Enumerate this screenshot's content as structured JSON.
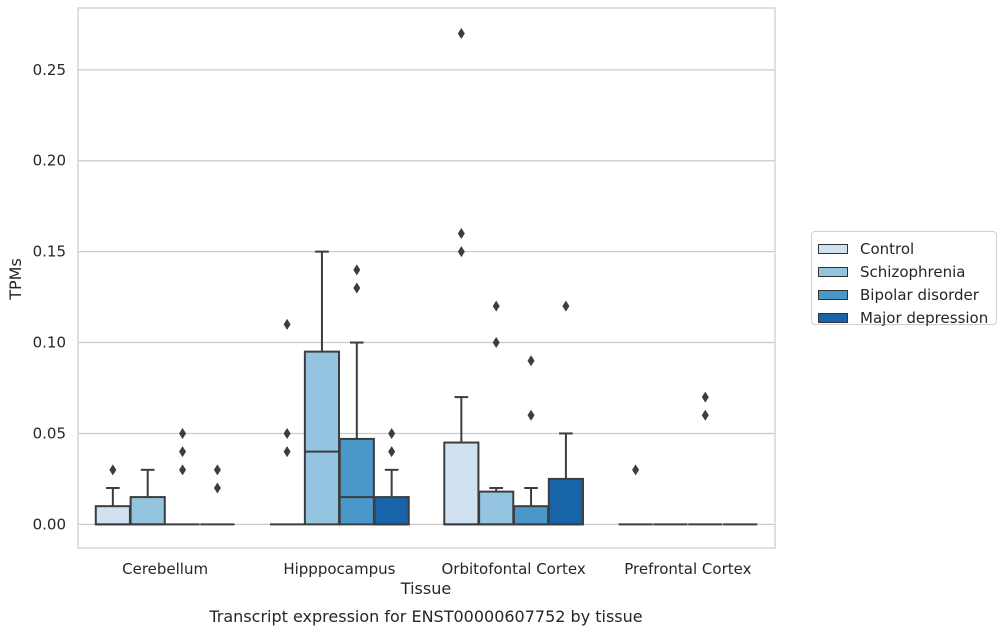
{
  "chart_data": {
    "type": "box",
    "xlabel": "Tissue",
    "ylabel": "TPMs",
    "caption": "Transcript expression for ENST00000607752 by tissue",
    "ylim": [
      -0.013,
      0.284
    ],
    "yticks": [
      0.0,
      0.05,
      0.1,
      0.15,
      0.2,
      0.25
    ],
    "ytick_labels": [
      "0.00",
      "0.05",
      "0.10",
      "0.15",
      "0.20",
      "0.25"
    ],
    "grid": "horizontal",
    "legend_position": "right",
    "categories": [
      "Cerebellum",
      "Hipppocampus",
      "Orbitofontal Cortex",
      "Prefrontal Cortex"
    ],
    "series": [
      {
        "name": "Control",
        "color": "#d0e1f2",
        "boxes": [
          {
            "min": 0,
            "q1": 0,
            "median": 0,
            "q3": 0.01,
            "max": 0.02,
            "outliers": [
              0.03
            ]
          },
          {
            "min": 0,
            "q1": 0,
            "median": 0,
            "q3": 0,
            "max": 0,
            "outliers": [
              0.04,
              0.05,
              0.11
            ]
          },
          {
            "min": 0,
            "q1": 0,
            "median": 0,
            "q3": 0.045,
            "max": 0.07,
            "outliers": [
              0.15,
              0.16,
              0.27
            ]
          },
          {
            "min": 0,
            "q1": 0,
            "median": 0,
            "q3": 0,
            "max": 0,
            "outliers": [
              0.03
            ]
          }
        ]
      },
      {
        "name": "Schizophrenia",
        "color": "#94c4df",
        "boxes": [
          {
            "min": 0,
            "q1": 0,
            "median": 0,
            "q3": 0.015,
            "max": 0.03,
            "outliers": []
          },
          {
            "min": 0,
            "q1": 0,
            "median": 0.04,
            "q3": 0.095,
            "max": 0.15,
            "outliers": []
          },
          {
            "min": 0,
            "q1": 0,
            "median": 0,
            "q3": 0.018,
            "max": 0.02,
            "outliers": [
              0.1,
              0.12
            ]
          },
          {
            "min": 0,
            "q1": 0,
            "median": 0,
            "q3": 0,
            "max": 0,
            "outliers": []
          }
        ]
      },
      {
        "name": "Bipolar disorder",
        "color": "#4a98c9",
        "boxes": [
          {
            "min": 0,
            "q1": 0,
            "median": 0,
            "q3": 0,
            "max": 0,
            "outliers": [
              0.03,
              0.04,
              0.05
            ]
          },
          {
            "min": 0,
            "q1": 0,
            "median": 0.015,
            "q3": 0.047,
            "max": 0.1,
            "outliers": [
              0.13,
              0.14
            ]
          },
          {
            "min": 0,
            "q1": 0,
            "median": 0,
            "q3": 0.01,
            "max": 0.02,
            "outliers": [
              0.06,
              0.09
            ]
          },
          {
            "min": 0,
            "q1": 0,
            "median": 0,
            "q3": 0,
            "max": 0,
            "outliers": [
              0.06,
              0.07
            ]
          }
        ]
      },
      {
        "name": "Major depression",
        "color": "#1764ab",
        "boxes": [
          {
            "min": 0,
            "q1": 0,
            "median": 0,
            "q3": 0,
            "max": 0,
            "outliers": [
              0.02,
              0.03
            ]
          },
          {
            "min": 0,
            "q1": 0,
            "median": 0,
            "q3": 0.015,
            "max": 0.03,
            "outliers": [
              0.04,
              0.05
            ]
          },
          {
            "min": 0,
            "q1": 0,
            "median": 0,
            "q3": 0.025,
            "max": 0.05,
            "outliers": [
              0.12
            ]
          },
          {
            "min": 0,
            "q1": 0,
            "median": 0,
            "q3": 0,
            "max": 0,
            "outliers": []
          }
        ]
      }
    ]
  }
}
